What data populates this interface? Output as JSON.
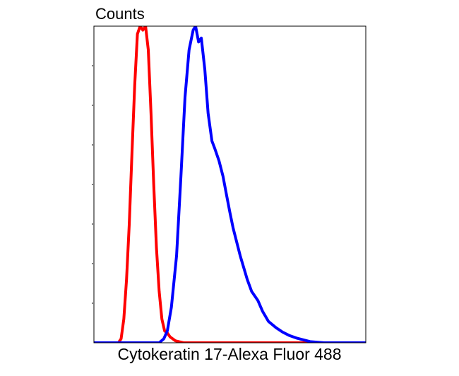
{
  "chart_data": {
    "type": "line",
    "title": "Counts",
    "x_label": "Cytokeratin 17-Alexa Fluor 488",
    "xlim": [
      0,
      100
    ],
    "ylim": [
      0,
      8
    ],
    "yticks": [
      1,
      2,
      3,
      4,
      5,
      6,
      7
    ],
    "series": [
      {
        "color": "#ff0000",
        "x": [
          0,
          9,
          10,
          11,
          12,
          13,
          14,
          15,
          16,
          17,
          18,
          19,
          20,
          21,
          22,
          23,
          24,
          25,
          26,
          27,
          28,
          30,
          33,
          100
        ],
        "values": [
          0,
          0,
          0.1,
          0.6,
          1.6,
          3,
          4.8,
          6.5,
          7.8,
          8,
          7.9,
          8,
          7.4,
          5.8,
          4,
          2.4,
          1.3,
          0.6,
          0.3,
          0.25,
          0.15,
          0.05,
          0,
          0
        ]
      },
      {
        "color": "#0000ff",
        "x": [
          0,
          24,
          25.7,
          27,
          28.5,
          30.4,
          32,
          33.5,
          35,
          36.5,
          37.4,
          38.5,
          39.5,
          40.8,
          42,
          43.4,
          44.5,
          46,
          47.5,
          48.6,
          50,
          51.2,
          53.8,
          56.4,
          58,
          60.3,
          62,
          64.2,
          67,
          69.4,
          72,
          74.5,
          79.5,
          84.7,
          100
        ],
        "values": [
          0,
          0,
          0.1,
          0.3,
          0.9,
          2.2,
          4.2,
          6.2,
          7.4,
          7.9,
          8,
          7.6,
          7.7,
          6.9,
          5.8,
          5.1,
          4.9,
          4.6,
          4.2,
          3.8,
          3.3,
          2.9,
          2.2,
          1.6,
          1.3,
          1.07,
          0.8,
          0.54,
          0.38,
          0.27,
          0.18,
          0.12,
          0.03,
          0,
          0
        ]
      }
    ]
  }
}
